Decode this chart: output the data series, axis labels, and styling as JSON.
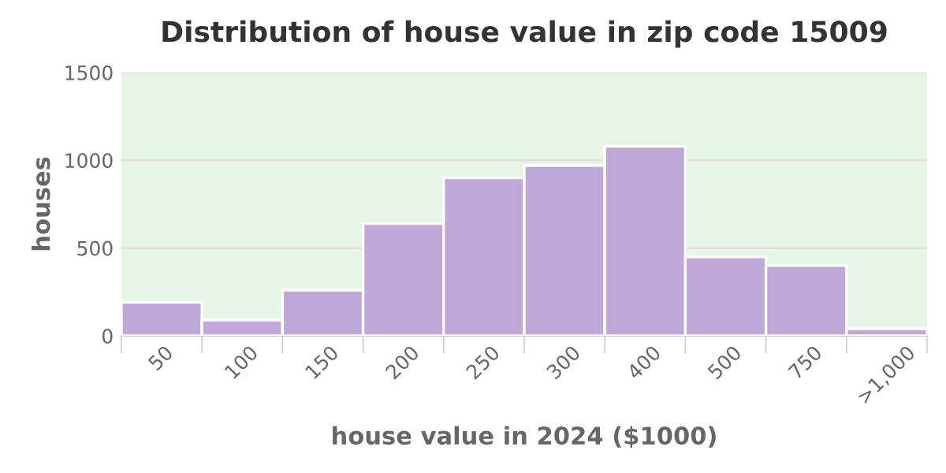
{
  "chart_data": {
    "type": "bar",
    "title": "Distribution of house value in zip code 15009",
    "xlabel": "house value in 2024 ($1000)",
    "ylabel": "houses",
    "categories": [
      "50",
      "100",
      "150",
      "200",
      "250",
      "300",
      "400",
      "500",
      "750",
      ">1,000"
    ],
    "values": [
      190,
      90,
      260,
      640,
      900,
      970,
      1080,
      450,
      400,
      40
    ],
    "color": "#bfa8d8",
    "ylim": [
      0,
      1500
    ],
    "yticks": [
      0,
      500,
      1000,
      1500
    ],
    "grid": "y"
  }
}
